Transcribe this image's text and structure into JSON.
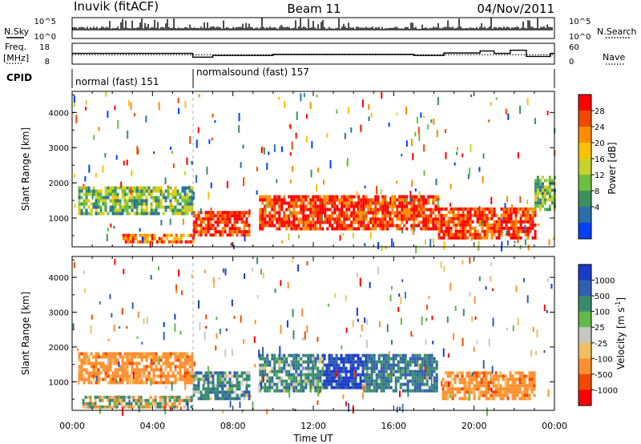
{
  "header": {
    "station": "Inuvik (fitACF)",
    "beam": "Beam 11",
    "date": "04/Nov/2011"
  },
  "status_panels": {
    "nsky_label": "N.Sky",
    "nsky_ticks": [
      "10^5",
      "10^0"
    ],
    "nsearch_label": "N.Search",
    "nsearch_ticks": [
      "10^5",
      "10^0"
    ],
    "freq_label": "Freq.",
    "freq_unit": "[MHz]",
    "freq_ticks": [
      "18",
      "8"
    ],
    "nave_label": "Nave",
    "nave_ticks": [
      "60",
      "0"
    ],
    "cpid_label": "CPID",
    "cpid_segments": [
      {
        "label": "normal (fast) 151",
        "start_hour": 0,
        "end_hour": 6
      },
      {
        "label": "normalsound (fast) 157",
        "start_hour": 6,
        "end_hour": 24
      }
    ],
    "nave_levels": [
      {
        "start": 0,
        "end": 6,
        "value": 31
      },
      {
        "start": 6,
        "end": 7,
        "value": 20
      },
      {
        "start": 7,
        "end": 10,
        "value": 25
      },
      {
        "start": 10,
        "end": 17,
        "value": 28
      },
      {
        "start": 17,
        "end": 18.5,
        "value": 25
      },
      {
        "start": 18.5,
        "end": 20.3,
        "value": 32
      },
      {
        "start": 20.3,
        "end": 21,
        "value": 38
      },
      {
        "start": 21,
        "end": 21.8,
        "value": 31
      },
      {
        "start": 21.8,
        "end": 22.6,
        "value": 40
      },
      {
        "start": 22.6,
        "end": 23.8,
        "value": 22
      },
      {
        "start": 23.8,
        "end": 24,
        "value": 31
      }
    ],
    "freq_mhz": 12.5
  },
  "chart_data": [
    {
      "type": "heatmap",
      "panel": "power",
      "xlabel": "Time UT",
      "ylabel": "Slant Range [km]",
      "xlim": [
        0,
        24
      ],
      "ylim": [
        180,
        4600
      ],
      "x_ticks": [
        "00:00",
        "04:00",
        "08:00",
        "12:00",
        "16:00",
        "20:00",
        "00:00"
      ],
      "y_ticks": [
        1000,
        2000,
        3000,
        4000
      ],
      "colorbar": {
        "label": "Power [dB]",
        "ticks": [
          "28",
          "24",
          "20",
          "16",
          "12",
          "8",
          "4"
        ],
        "colors": [
          "#ff0000",
          "#f04a00",
          "#ff8c00",
          "#ffc000",
          "#c8d228",
          "#6cc040",
          "#3a9160",
          "#2a6fa8",
          "#0040ff"
        ]
      },
      "echo_regions": [
        {
          "start": 0.3,
          "end": 6.0,
          "range": [
            1150,
            1900
          ],
          "level": 12
        },
        {
          "start": 2.5,
          "end": 6.0,
          "range": [
            300,
            550
          ],
          "level": 24
        },
        {
          "start": 6.0,
          "end": 8.8,
          "range": [
            500,
            1200
          ],
          "level": 28
        },
        {
          "start": 9.3,
          "end": 18.2,
          "range": [
            700,
            1650
          ],
          "level": 28
        },
        {
          "start": 18.2,
          "end": 23.0,
          "range": [
            400,
            1300
          ],
          "level": 28
        },
        {
          "start": 23.0,
          "end": 24,
          "range": [
            1200,
            2200
          ],
          "level": 12
        }
      ]
    },
    {
      "type": "heatmap",
      "panel": "velocity",
      "xlabel": "Time UT",
      "ylabel": "Slant Range [km]",
      "xlim": [
        0,
        24
      ],
      "ylim": [
        180,
        4600
      ],
      "x_ticks": [
        "00:00",
        "04:00",
        "08:00",
        "12:00",
        "16:00",
        "20:00",
        "00:00"
      ],
      "y_ticks": [
        1000,
        2000,
        3000,
        4000
      ],
      "colorbar": {
        "label": "Velocity",
        "unit_label": "[m s",
        "unit_exp": "-1",
        "unit_close": "]",
        "ticks": [
          "1000",
          "500",
          "100",
          "25",
          "-25",
          "-100",
          "-500",
          "-1000"
        ],
        "colors": [
          "#1a3cc8",
          "#2f5fb0",
          "#3a8a6e",
          "#62b84a",
          "#c8c8c0",
          "#f0c060",
          "#ff9030",
          "#f04a00",
          "#ff0000"
        ]
      },
      "echo_regions": [
        {
          "start": 0.3,
          "end": 6.0,
          "range": [
            1000,
            1850
          ],
          "velocity": -300
        },
        {
          "start": 6.0,
          "end": 8.8,
          "range": [
            500,
            1300
          ],
          "velocity": 200
        },
        {
          "start": 9.3,
          "end": 12.5,
          "range": [
            700,
            1800
          ],
          "velocity": 200
        },
        {
          "start": 12.5,
          "end": 14.5,
          "range": [
            800,
            1800
          ],
          "velocity": 800
        },
        {
          "start": 14.5,
          "end": 18.2,
          "range": [
            700,
            1800
          ],
          "velocity": 300
        },
        {
          "start": 18.4,
          "end": 23.0,
          "range": [
            500,
            1300
          ],
          "velocity": -300
        },
        {
          "start": 0.5,
          "end": 6.0,
          "range": [
            300,
            600
          ],
          "velocity": -10
        }
      ]
    }
  ]
}
